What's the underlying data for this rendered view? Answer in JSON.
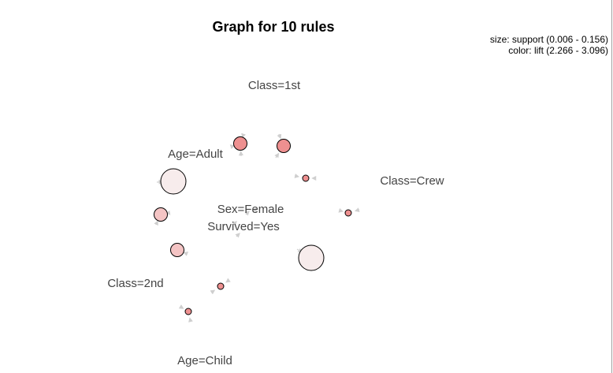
{
  "title": "Graph for 10 rules",
  "legend": {
    "size_text": "size: support (0.006 - 0.156)",
    "color_text": "color: lift (2.266 - 3.096)"
  },
  "items": [
    "Class=1st",
    "Age=Adult",
    "Class=Crew",
    "Sex=Female",
    "Survived=Yes",
    "Class=2nd",
    "Age=Child"
  ],
  "rules": [
    {
      "support_level": "small",
      "lift_level": "high"
    },
    {
      "support_level": "small",
      "lift_level": "high"
    },
    {
      "support_level": "large",
      "lift_level": "low"
    },
    {
      "support_level": "tiny",
      "lift_level": "high"
    },
    {
      "support_level": "tiny",
      "lift_level": "high"
    },
    {
      "support_level": "small",
      "lift_level": "medium"
    },
    {
      "support_level": "small",
      "lift_level": "medium"
    },
    {
      "support_level": "large",
      "lift_level": "low"
    },
    {
      "support_level": "tiny",
      "lift_level": "high"
    },
    {
      "support_level": "tiny",
      "lift_level": "high"
    }
  ],
  "colors": {
    "high_lift": "#ee9090",
    "medium_lift": "#f4c4c4",
    "low_lift": "#f7ecec",
    "edge": "#cfcfcf",
    "label": "#444444"
  }
}
